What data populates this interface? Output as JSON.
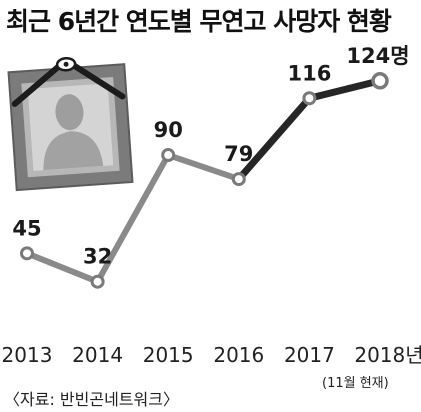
{
  "chart_data": {
    "type": "line",
    "title": "최근 6년간 연도별 무연고 사망자 현황",
    "categories": [
      "2013",
      "2014",
      "2015",
      "2016",
      "2017",
      "2018년"
    ],
    "values": [
      45,
      32,
      90,
      79,
      116,
      124
    ],
    "value_labels": [
      "45",
      "32",
      "90",
      "79",
      "116",
      "124명"
    ],
    "note": "(11월 현재)",
    "source": "〈자료: 반빈곤네트워크〉",
    "xlabel": "",
    "ylabel": "",
    "grid": false,
    "legend": "none"
  },
  "colors": {
    "line_early": "#8a8a8a",
    "line_late": "#262626",
    "marker_stroke": "#7a7a7a",
    "marker_fill": "#ffffff"
  },
  "illustration": {
    "icon": "memorial-portrait-frame-icon"
  }
}
